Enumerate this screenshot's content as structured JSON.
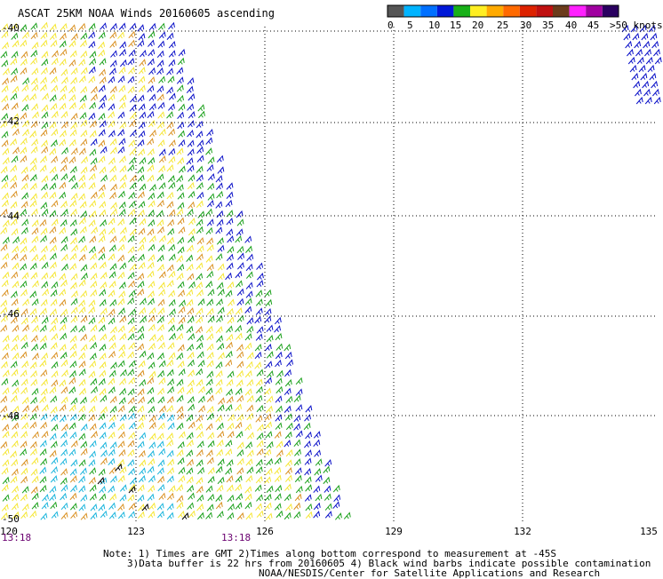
{
  "title": "ASCAT 25KM NOAA Winds 20160605 ascending",
  "legend": {
    "units": ">50 knots",
    "labels": [
      "0",
      "5",
      "10",
      "15",
      "20",
      "25",
      "30",
      "35",
      "40",
      "45"
    ],
    "colors": [
      "#555555",
      "#00b4ff",
      "#0070ff",
      "#0018d8",
      "#18b018",
      "#ffee22",
      "#ffaa00",
      "#ff6a00",
      "#dd2200",
      "#c01010",
      "#6b3b1b",
      "#ff20ff",
      "#a000a0",
      "#2a0060"
    ]
  },
  "axes": {
    "lon_ticks": [
      "120",
      "123",
      "126",
      "129",
      "132",
      "135"
    ],
    "lat_ticks": [
      "-42",
      "-44",
      "-46",
      "-48",
      "-50"
    ],
    "lat_top_label": "-40"
  },
  "times": [
    "13:18",
    "13:18"
  ],
  "notes": {
    "line1": "Note: 1) Times are GMT 2)Times along bottom correspond to measurement at -45S",
    "line2": "3)Data buffer is 22 hrs from 20160605 4) Black wind barbs indicate possible contamination",
    "line3": "NOAA/NESDIS/Center for Satellite Applications and Research"
  },
  "wind_colors": {
    "blue": "#0a10c8",
    "green": "#1aa01a",
    "yellow": "#f5e632",
    "orange": "#d99020",
    "cyan": "#18b4dc",
    "black": "#000000"
  }
}
